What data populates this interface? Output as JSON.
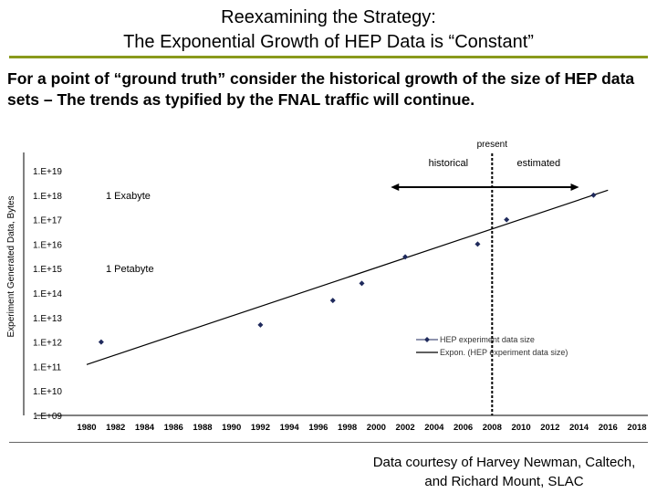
{
  "slide": {
    "title_line1": "Reexamining the Strategy:",
    "title_line2": "The Exponential Growth of HEP Data is “Constant”",
    "intro": "For a point of “ground truth” consider the historical growth of the size of HEP data sets – The trends as typified by the FNAL traffic will continue.",
    "credit_line1": "Data courtesy of Harvey Newman, Caltech,",
    "credit_line2": "and Richard Mount, SLAC",
    "accent_color": "#8a9a1c"
  },
  "chart_data": {
    "type": "scatter",
    "title": "",
    "xlabel": "",
    "ylabel": "Experiment Generated Data, Bytes",
    "yscale": "log",
    "xlim": [
      1980,
      2018
    ],
    "ylim": [
      1000000000.0,
      1e+19
    ],
    "y_tick_labels": [
      "1.E+09",
      "1.E+10",
      "1.E+11",
      "1.E+12",
      "1.E+13",
      "1.E+14",
      "1.E+15",
      "1.E+16",
      "1.E+17",
      "1.E+18",
      "1.E+19"
    ],
    "x_tick_labels": [
      "1980",
      "1982",
      "1984",
      "1986",
      "1988",
      "1990",
      "1992",
      "1994",
      "1996",
      "1998",
      "2000",
      "2002",
      "2004",
      "2006",
      "2008",
      "2010",
      "2012",
      "2014",
      "2016",
      "2018"
    ],
    "series": [
      {
        "name": "HEP experiment data size",
        "marker": "diamond",
        "color": "#1f2a5c",
        "points": [
          {
            "x": 1981,
            "y": 1000000000000.0
          },
          {
            "x": 1992,
            "y": 5000000000000.0
          },
          {
            "x": 1997,
            "y": 50000000000000.0
          },
          {
            "x": 1999,
            "y": 250000000000000.0
          },
          {
            "x": 2002,
            "y": 3000000000000000.0
          },
          {
            "x": 2007,
            "y": 1e+16
          },
          {
            "x": 2009,
            "y": 1e+17
          },
          {
            "x": 2015,
            "y": 1e+18
          }
        ]
      },
      {
        "name": "Expon. (HEP experiment data size)",
        "type": "trendline",
        "color": "#000000",
        "points": [
          {
            "x": 1980,
            "y": 120000000000.0
          },
          {
            "x": 2016,
            "y": 1.6e+18
          }
        ]
      }
    ],
    "annotations": {
      "present_label": "present",
      "present_year": 2008,
      "historical_label": "historical",
      "estimated_label": "estimated",
      "arrow_range": [
        2001,
        2014
      ],
      "exabyte_label": "1 Exabyte",
      "petabyte_label": "1 Petabyte"
    },
    "legend_position": "lower-right",
    "grid": false
  }
}
